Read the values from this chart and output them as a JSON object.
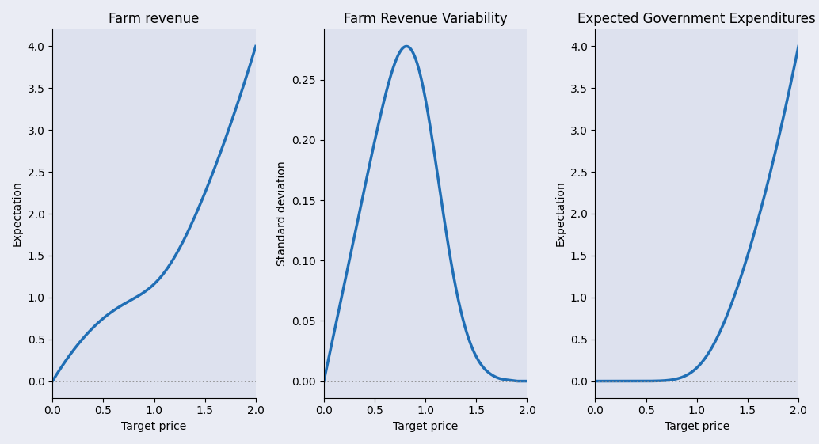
{
  "titles": [
    "Farm revenue",
    "Farm Revenue Variability",
    "Expected Government Expenditures"
  ],
  "ylabels": [
    "Expectation",
    "Standard deviation",
    "Expectation"
  ],
  "xlabel": "Target price",
  "background_color": "#dde1ee",
  "line_color": "#1f6eb5",
  "dotted_color": "#888888",
  "line_width": 2.5,
  "fig_facecolor": "#eaecf4",
  "xlim": [
    0,
    2
  ],
  "n_points": 1000,
  "p_star": 1.0,
  "sigma": 0.3,
  "title_fontsize": 12,
  "label_fontsize": 10
}
